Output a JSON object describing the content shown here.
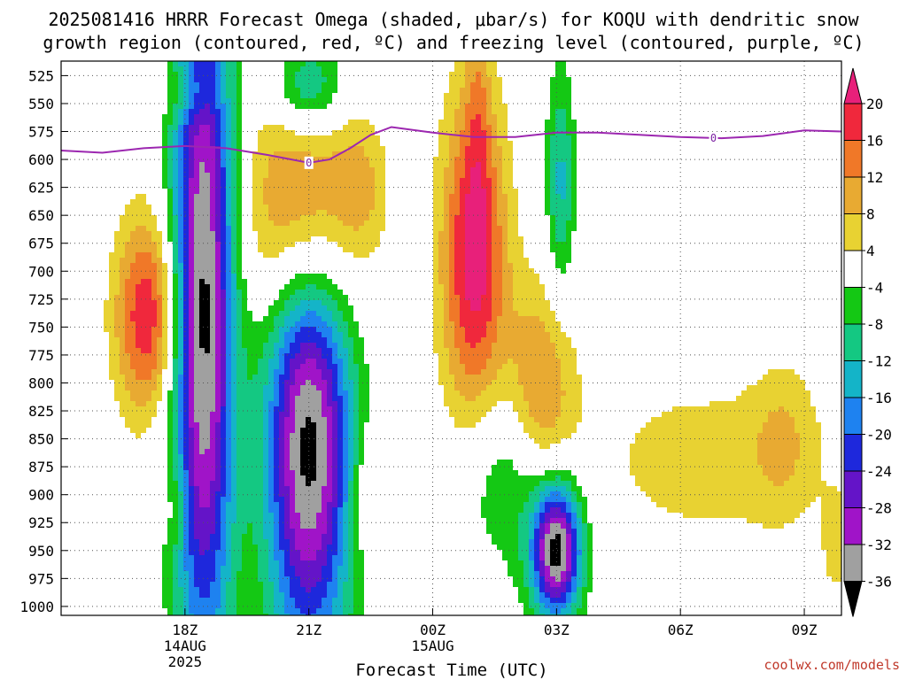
{
  "title_lines": [
    "2025081416 HRRR Forecast Omega (shaded, μbar/s) for KOQU with dendritic snow",
    "growth region (contoured, red, ºC) and freezing level (contoured, purple, ºC)"
  ],
  "credit": "coolwx.com/models",
  "chart_data": {
    "type": "heatmap",
    "xlabel": "Forecast Time (UTC)",
    "x_ticks": [
      {
        "x": 3,
        "lines": [
          "18Z",
          "14AUG",
          "2025"
        ]
      },
      {
        "x": 6,
        "lines": [
          "21Z"
        ]
      },
      {
        "x": 9,
        "lines": [
          "00Z",
          "15AUG"
        ]
      },
      {
        "x": 12,
        "lines": [
          "03Z"
        ]
      },
      {
        "x": 15,
        "lines": [
          "06Z"
        ]
      },
      {
        "x": 18,
        "lines": [
          "09Z"
        ]
      }
    ],
    "xlim": [
      0,
      18.9
    ],
    "y_ticks": [
      525,
      550,
      575,
      600,
      625,
      650,
      675,
      700,
      725,
      750,
      775,
      800,
      825,
      850,
      875,
      900,
      925,
      950,
      975,
      1000
    ],
    "ylim": [
      512,
      1008
    ],
    "grid": true,
    "colorbar": {
      "labels": [
        "20",
        "16",
        "12",
        "8",
        "4",
        "-4",
        "-8",
        "-12",
        "-16",
        "-20",
        "-24",
        "-28",
        "-32",
        "-36"
      ],
      "colors": [
        "#e8207a",
        "#f0283c",
        "#f07828",
        "#e8aa32",
        "#e8d232",
        "#ffffff",
        "#14c814",
        "#14c882",
        "#14b4c8",
        "#1e82f0",
        "#1e28dc",
        "#6414c8",
        "#a014c8",
        "#a0a0a0",
        "#000000"
      ]
    },
    "omega_features": [
      {
        "x": 2.1,
        "p": 740,
        "rx": 0.8,
        "rp": 90,
        "value": 20
      },
      {
        "x": 3.1,
        "p": 540,
        "rx": 0.8,
        "rp": 25,
        "value": 6
      },
      {
        "x": 2.8,
        "p": 910,
        "rx": 0.3,
        "rp": 40,
        "value": 6
      },
      {
        "x": 3.45,
        "p": 730,
        "rx": 0.75,
        "rp": 330,
        "value": -38
      },
      {
        "x": 5.9,
        "p": 650,
        "rx": 1.35,
        "rp": 110,
        "value": 22
      },
      {
        "x": 6.0,
        "p": 535,
        "rx": 0.85,
        "rp": 40,
        "value": -14
      },
      {
        "x": 6.0,
        "p": 850,
        "rx": 1.05,
        "rp": 200,
        "value": -38
      },
      {
        "x": 7.3,
        "p": 625,
        "rx": 0.6,
        "rp": 55,
        "value": 6
      },
      {
        "x": 7.4,
        "p": 900,
        "rx": 0.4,
        "rp": 60,
        "value": 6
      },
      {
        "x": 10.1,
        "p": 550,
        "rx": 0.3,
        "rp": 110,
        "value": 6
      },
      {
        "x": 10.0,
        "p": 690,
        "rx": 0.8,
        "rp": 150,
        "value": 22
      },
      {
        "x": 11.6,
        "p": 820,
        "rx": 0.85,
        "rp": 100,
        "value": 16
      },
      {
        "x": 11.0,
        "p": 880,
        "rx": 1.2,
        "rp": 90,
        "value": -12
      },
      {
        "x": 12.0,
        "p": 950,
        "rx": 0.6,
        "rp": 60,
        "value": -38
      },
      {
        "x": 12.1,
        "p": 620,
        "rx": 0.35,
        "rp": 100,
        "value": -13
      },
      {
        "x": 15.6,
        "p": 870,
        "rx": 2.9,
        "rp": 80,
        "value": 6
      },
      {
        "x": 17.5,
        "p": 850,
        "rx": 0.8,
        "rp": 70,
        "value": 6
      },
      {
        "x": 18.8,
        "p": 945,
        "rx": 0.4,
        "rp": 50,
        "value": 6
      },
      {
        "x": 10.3,
        "p": 970,
        "rx": 0.3,
        "rp": 20,
        "value": 6
      }
    ],
    "freezing_level": {
      "label": "0",
      "x": [
        0,
        1,
        2,
        3,
        4,
        5,
        6,
        6.5,
        7,
        7.5,
        8,
        9,
        10,
        11,
        12,
        13,
        14,
        15,
        16,
        17,
        18,
        18.9
      ],
      "p": [
        592,
        594,
        590,
        588,
        590,
        596,
        603,
        600,
        590,
        578,
        571,
        576,
        580,
        580,
        576,
        576,
        578,
        580,
        581,
        579,
        574,
        575
      ],
      "labels_at": [
        6,
        15.8
      ]
    },
    "ground": {
      "x": [
        0,
        9,
        18.9
      ],
      "p": [
        1008,
        1008,
        1010
      ]
    }
  }
}
